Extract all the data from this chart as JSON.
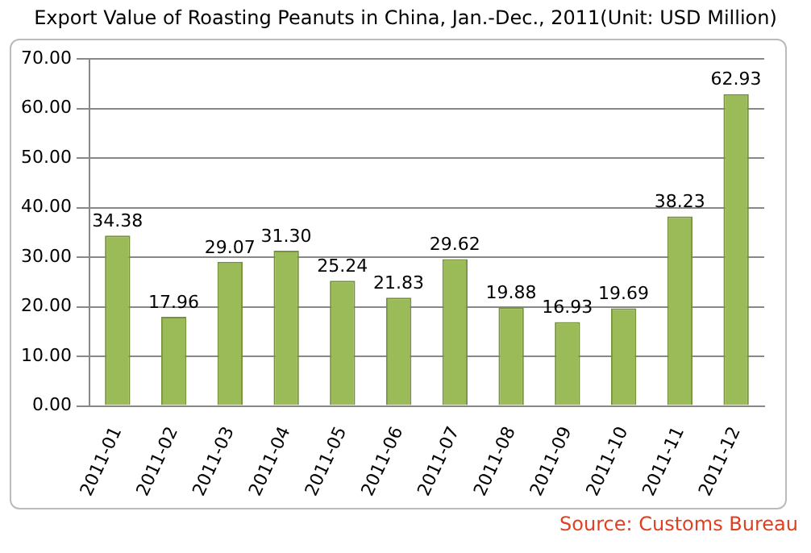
{
  "chart_data": {
    "type": "bar",
    "title": "Export Value of Roasting Peanuts in China, Jan.-Dec., 2011(Unit: USD Million)",
    "categories": [
      "2011-01",
      "2011-02",
      "2011-03",
      "2011-04",
      "2011-05",
      "2011-06",
      "2011-07",
      "2011-08",
      "2011-09",
      "2011-10",
      "2011-11",
      "2011-12"
    ],
    "values": [
      34.38,
      17.96,
      29.07,
      31.3,
      25.24,
      21.83,
      29.62,
      19.88,
      16.93,
      19.69,
      38.23,
      62.93
    ],
    "value_labels": [
      "34.38",
      "17.96",
      "29.07",
      "31.30",
      "25.24",
      "21.83",
      "29.62",
      "19.88",
      "16.93",
      "19.69",
      "38.23",
      "62.93"
    ],
    "color": "#9bbb59",
    "ylim": [
      0,
      70
    ],
    "yticks": [
      {
        "value": 0,
        "label": "0.00"
      },
      {
        "value": 10,
        "label": "10.00"
      },
      {
        "value": 20,
        "label": "20.00"
      },
      {
        "value": 30,
        "label": "30.00"
      },
      {
        "value": 40,
        "label": "40.00"
      },
      {
        "value": 50,
        "label": "50.00"
      },
      {
        "value": 60,
        "label": "60.00"
      },
      {
        "value": 70,
        "label": "70.00"
      }
    ],
    "grid": "y",
    "annotations": [
      "Source: Customs Bureau"
    ]
  }
}
